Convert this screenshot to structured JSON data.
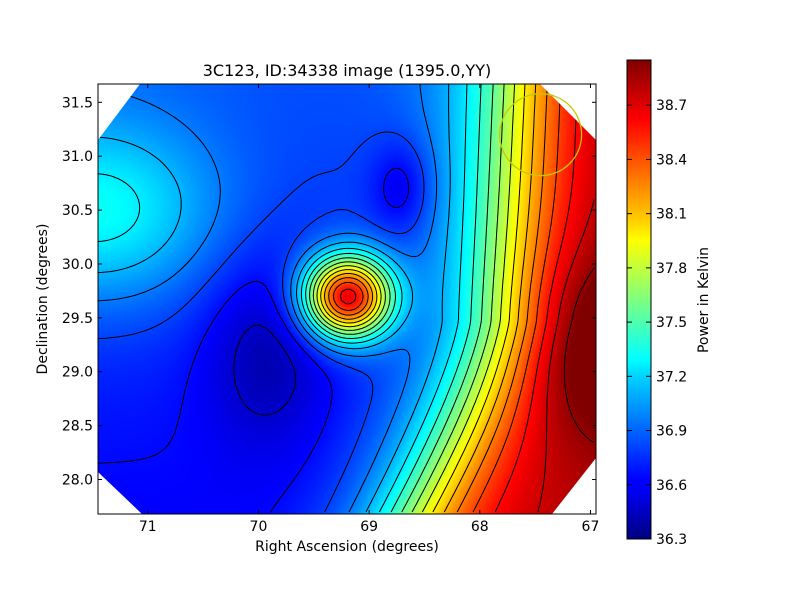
{
  "chart_data": {
    "type": "heatmap",
    "title": "3C123, ID:34338 image (1395.0,YY)",
    "xlabel": "Right Ascension (degrees)",
    "ylabel": "Declination (degrees)",
    "xlim": [
      71.45,
      66.95
    ],
    "ylim": [
      27.68,
      31.67
    ],
    "x_ticks": [
      71,
      70,
      69,
      68,
      67
    ],
    "y_ticks": [
      28.0,
      28.5,
      29.0,
      29.5,
      30.0,
      30.5,
      31.0,
      31.5
    ],
    "x_tick_labels": [
      "71",
      "70",
      "69",
      "68",
      "67"
    ],
    "y_tick_labels": [
      "28.0",
      "28.5",
      "29.0",
      "29.5",
      "30.0",
      "30.5",
      "31.0",
      "31.5"
    ],
    "colorbar": {
      "label": "Power in Kelvin",
      "range": [
        36.3,
        38.95
      ],
      "ticks": [
        36.3,
        36.6,
        36.9,
        37.2,
        37.5,
        37.8,
        38.1,
        38.4,
        38.7
      ],
      "tick_labels": [
        "36.3",
        "36.6",
        "36.9",
        "37.2",
        "37.5",
        "37.8",
        "38.1",
        "38.4",
        "38.7"
      ],
      "colormap": "jet"
    },
    "features": [
      {
        "kind": "peak",
        "ra": 69.2,
        "dec": 29.7,
        "value": 38.6
      },
      {
        "kind": "peak",
        "ra": 67.0,
        "dec": 29.3,
        "value": 38.9
      },
      {
        "kind": "peak",
        "ra": 71.4,
        "dec": 30.4,
        "value": 37.1
      },
      {
        "kind": "minimum",
        "ra": 69.85,
        "dec": 29.0,
        "value": 36.35
      },
      {
        "kind": "minimum",
        "ra": 68.8,
        "dec": 30.8,
        "value": 36.4
      }
    ],
    "beam_circle": {
      "ra": 67.45,
      "dec": 31.2,
      "radius_deg": 0.37,
      "color": "#c8c800"
    },
    "contours": true,
    "grid": false
  }
}
